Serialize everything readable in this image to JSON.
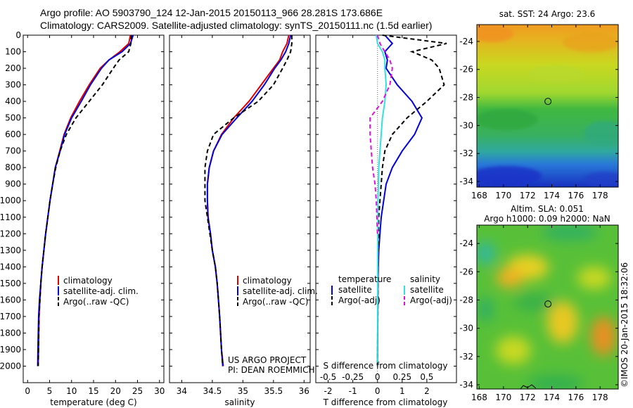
{
  "header": {
    "line1": "Argo profile: AO 5903790_124 12-Jan-2015 20150113_966 28.281S 173.686E",
    "line2": "Climatology: CARS2009. Satellite-adjusted climatology: synTS_20150111.nc (1.5d earlier)"
  },
  "colors": {
    "climatology": "#e00000",
    "satellite": "#0000e0",
    "argo": "#000000",
    "salinity_satellite": "#33e0e0",
    "salinity_argo": "#e010e0"
  },
  "depth_axis": {
    "range": [
      0,
      2100
    ],
    "ticks": [
      "0",
      "100",
      "200",
      "300",
      "400",
      "500",
      "600",
      "700",
      "800",
      "900",
      "1000",
      "1100",
      "1200",
      "1300",
      "1400",
      "1500",
      "1600",
      "1700",
      "1800",
      "1900",
      "2000"
    ]
  },
  "panels": {
    "temperature": {
      "xlabel": "temperature (deg C)",
      "ticks": [
        "0",
        "5",
        "10",
        "15",
        "20",
        "25",
        "30"
      ],
      "legend": [
        "climatology",
        "satellite-adj. clim.",
        "Argo(..raw -QC)"
      ]
    },
    "salinity": {
      "xlabel": "salinity",
      "ticks": [
        "34",
        "34.5",
        "35",
        "35.5",
        "36"
      ],
      "legend": [
        "climatology",
        "satellite-adj. clim.",
        "Argo(..raw -QC)"
      ],
      "credit1": "US ARGO PROJECT",
      "credit2": "PI: DEAN ROEMMICH"
    },
    "difference": {
      "top_label": "S difference from climatology",
      "top_ticks": [
        "-0.5",
        "-0.25",
        "0",
        "0.25",
        "0.5"
      ],
      "xlabel": "T difference from climatology",
      "bottom_ticks": [
        "-2",
        "-1",
        "0",
        "1",
        "2"
      ],
      "legend_temperature_title": "temperature",
      "legend_salinity_title": "salinity",
      "legend_items": [
        "satellite",
        "Argo(-adj)",
        "satellite",
        "Argo(-adj)"
      ]
    }
  },
  "maps": {
    "sst": {
      "title": "sat. SST: 24 Argo: 23.6",
      "lat_ticks": [
        "-24",
        "-26",
        "-28",
        "-30",
        "-32",
        "-34"
      ],
      "lon_ticks": [
        "168",
        "170",
        "172",
        "174",
        "176",
        "178"
      ],
      "float_lon": 173.686,
      "float_lat": -28.281
    },
    "sla": {
      "title1": "Altim. SLA: 0.051",
      "title2": "Argo h1000: 0.09 h2000: NaN",
      "lat_ticks": [
        "-24",
        "-26",
        "-28",
        "-30",
        "-32",
        "-34"
      ],
      "lon_ticks": [
        "168",
        "170",
        "172",
        "174",
        "176",
        "178"
      ]
    }
  },
  "watermark": "©IMOS 20-Jan-2015 18:32:06",
  "chart_data": [
    {
      "type": "line",
      "title": "",
      "xlabel": "temperature (deg C)",
      "ylabel": "",
      "xlim": [
        -1,
        31
      ],
      "ylim": [
        2100,
        0
      ],
      "series": [
        {
          "name": "climatology",
          "x": [
            23.4,
            23.0,
            21.0,
            18.5,
            16.5,
            14.0,
            11.8,
            9.8,
            8.3,
            7.3,
            6.3,
            5.7,
            5.1,
            4.6,
            4.1,
            3.7,
            3.3,
            3.0,
            2.8,
            2.6,
            2.5,
            2.4
          ],
          "y": [
            0,
            50,
            100,
            150,
            200,
            300,
            400,
            500,
            600,
            700,
            800,
            900,
            1000,
            1100,
            1200,
            1300,
            1400,
            1500,
            1600,
            1700,
            1900,
            2000
          ]
        },
        {
          "name": "satellite-adj. clim.",
          "x": [
            24.0,
            23.4,
            21.5,
            18.5,
            16.8,
            14.3,
            12.2,
            10.0,
            8.4,
            7.4,
            6.3,
            5.7,
            5.1,
            4.6,
            4.1,
            3.7,
            3.3,
            3.0,
            2.7,
            2.5,
            2.35,
            2.3
          ],
          "y": [
            0,
            50,
            100,
            150,
            200,
            300,
            400,
            500,
            600,
            700,
            800,
            900,
            1000,
            1100,
            1200,
            1300,
            1400,
            1500,
            1600,
            1700,
            1900,
            2000
          ]
        },
        {
          "name": "Argo(..raw -QC)",
          "x": [
            23.6,
            23.5,
            23.0,
            20.8,
            19.5,
            17.0,
            14.0,
            11.0,
            8.8,
            7.4,
            6.4,
            5.7,
            5.1,
            4.6,
            4.1,
            3.7,
            3.3,
            3.0,
            2.8,
            2.6,
            2.45,
            2.4
          ],
          "y": [
            0,
            50,
            100,
            150,
            200,
            300,
            400,
            500,
            600,
            700,
            800,
            900,
            1000,
            1100,
            1200,
            1300,
            1400,
            1500,
            1600,
            1700,
            1900,
            2000
          ]
        }
      ]
    },
    {
      "type": "line",
      "title": "",
      "xlabel": "salinity",
      "ylabel": "",
      "xlim": [
        33.8,
        36.1
      ],
      "ylim": [
        2100,
        0
      ],
      "series": [
        {
          "name": "climatology",
          "x": [
            35.75,
            35.72,
            35.65,
            35.6,
            35.5,
            35.3,
            35.1,
            34.85,
            34.65,
            34.52,
            34.45,
            34.42,
            34.42,
            34.43,
            34.47,
            34.5,
            34.55,
            34.58,
            34.6,
            34.62,
            34.65,
            34.68
          ],
          "y": [
            0,
            50,
            100,
            150,
            200,
            300,
            400,
            500,
            600,
            700,
            800,
            900,
            1000,
            1100,
            1200,
            1300,
            1400,
            1500,
            1600,
            1700,
            1900,
            2000
          ]
        },
        {
          "name": "satellite-adj. clim.",
          "x": [
            35.78,
            35.75,
            35.7,
            35.62,
            35.52,
            35.35,
            35.15,
            34.9,
            34.66,
            34.52,
            34.45,
            34.42,
            34.42,
            34.43,
            34.47,
            34.5,
            34.55,
            34.58,
            34.6,
            34.62,
            34.65,
            34.67
          ],
          "y": [
            0,
            50,
            100,
            150,
            200,
            300,
            400,
            500,
            600,
            700,
            800,
            900,
            1000,
            1100,
            1200,
            1300,
            1400,
            1500,
            1600,
            1700,
            1900,
            2000
          ]
        },
        {
          "name": "Argo(..raw -QC)",
          "x": [
            35.8,
            35.8,
            35.78,
            35.72,
            35.65,
            35.5,
            35.25,
            34.85,
            34.52,
            34.42,
            34.38,
            34.38,
            34.38,
            34.42,
            34.46,
            34.5,
            34.55,
            34.58,
            34.6,
            34.62,
            34.65,
            34.67
          ],
          "y": [
            0,
            50,
            100,
            150,
            200,
            300,
            400,
            500,
            600,
            700,
            800,
            900,
            1000,
            1100,
            1200,
            1300,
            1400,
            1500,
            1600,
            1700,
            1900,
            2000
          ]
        }
      ]
    },
    {
      "type": "line",
      "title": "",
      "xlabel": "T difference from climatology",
      "ylabel": "",
      "xlim": [
        -2.5,
        3.2
      ],
      "ylim": [
        2100,
        0
      ],
      "series": [
        {
          "name": "temperature satellite",
          "x": [
            0.3,
            0.6,
            0.3,
            0.4,
            0.35,
            0.8,
            1.4,
            1.8,
            1.5,
            1.0,
            0.6,
            0.35,
            0.25,
            0.15,
            0.1,
            0.05,
            0.03,
            0.02,
            0.01,
            0.0
          ],
          "y": [
            0,
            50,
            100,
            150,
            200,
            300,
            400,
            500,
            600,
            700,
            800,
            900,
            1000,
            1100,
            1200,
            1300,
            1400,
            1500,
            1700,
            2000
          ]
        },
        {
          "name": "temperature Argo(-adj)",
          "x": [
            0.2,
            2.8,
            1.4,
            2.2,
            2.5,
            2.7,
            2.0,
            1.2,
            0.6,
            0.3,
            0.2,
            0.15,
            0.1,
            0.05,
            0.03,
            0.02,
            0.01,
            0.0
          ],
          "y": [
            0,
            50,
            100,
            150,
            200,
            300,
            400,
            500,
            600,
            700,
            800,
            900,
            1000,
            1100,
            1300,
            1500,
            1700,
            2000
          ]
        },
        {
          "name": "salinity satellite",
          "x": [
            -0.05,
            0.0,
            0.2,
            0.3,
            0.3,
            0.35,
            0.3,
            0.2,
            0.15,
            0.1,
            0.05,
            0.02,
            0.01,
            0.0
          ],
          "y": [
            0,
            50,
            100,
            150,
            200,
            300,
            400,
            500,
            600,
            700,
            800,
            1000,
            1300,
            2000
          ]
        },
        {
          "name": "salinity Argo(-adj)",
          "x": [
            0.0,
            0.1,
            0.3,
            0.5,
            0.6,
            0.5,
            0.2,
            -0.3,
            -0.3,
            -0.25,
            -0.2,
            -0.1,
            -0.05,
            0.0
          ],
          "y": [
            0,
            50,
            100,
            150,
            200,
            300,
            400,
            500,
            600,
            700,
            800,
            900,
            1000,
            1200
          ]
        }
      ]
    }
  ]
}
